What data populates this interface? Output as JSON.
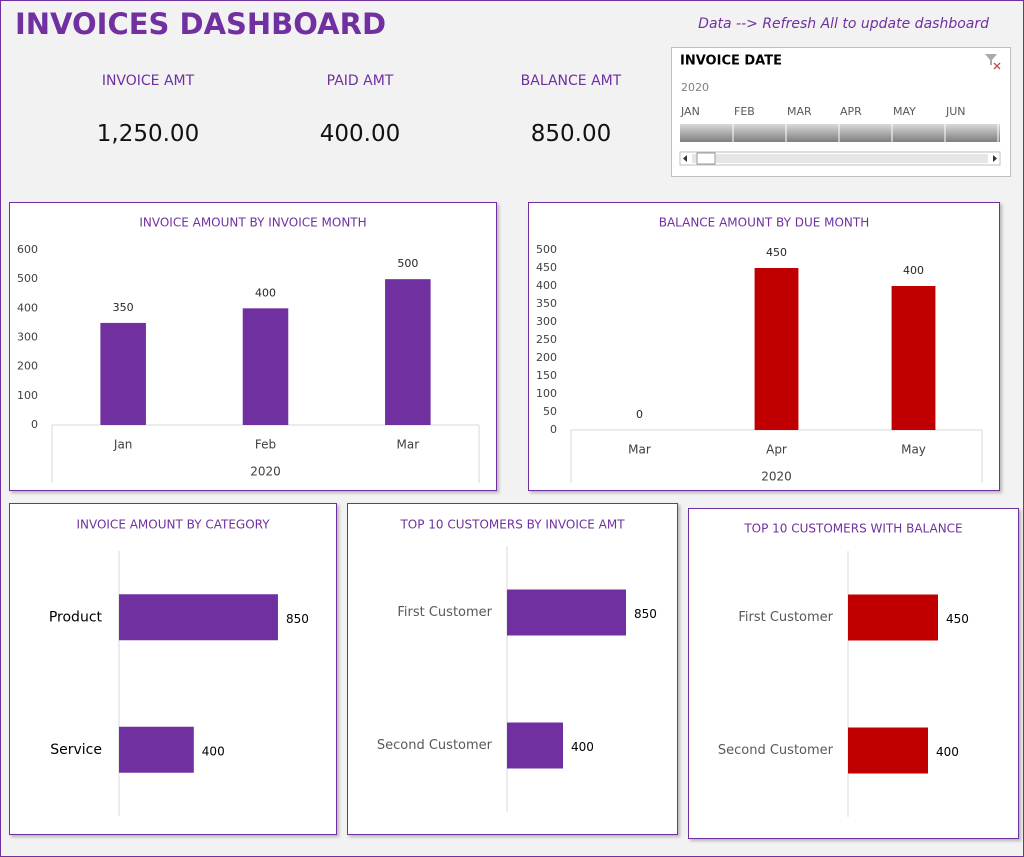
{
  "header": {
    "title": "INVOICES DASHBOARD",
    "note": "Data --> Refresh All to update dashboard"
  },
  "kpis": [
    {
      "label": "INVOICE AMT",
      "value": "1,250.00"
    },
    {
      "label": "PAID AMT",
      "value": "400.00"
    },
    {
      "label": "BALANCE AMT",
      "value": "850.00"
    }
  ],
  "slicer": {
    "title": "INVOICE DATE",
    "year": "2020",
    "months": [
      "JAN",
      "FEB",
      "MAR",
      "APR",
      "MAY",
      "JUN"
    ]
  },
  "chart_data": [
    {
      "type": "bar",
      "title": "INVOICE AMOUNT BY INVOICE MONTH",
      "categories": [
        "Jan",
        "Feb",
        "Mar"
      ],
      "xlabel": "2020",
      "values": [
        350,
        400,
        500
      ],
      "color": "#7030a0",
      "ylim": [
        0,
        600
      ],
      "yticks": [
        0,
        100,
        200,
        300,
        400,
        500,
        600
      ],
      "grid": false,
      "data_labels": true
    },
    {
      "type": "bar",
      "title": "BALANCE AMOUNT BY DUE MONTH",
      "categories": [
        "Mar",
        "Apr",
        "May"
      ],
      "xlabel": "2020",
      "values": [
        0,
        450,
        400
      ],
      "color": "#c00000",
      "ylim": [
        0,
        500
      ],
      "yticks": [
        0,
        50,
        100,
        150,
        200,
        250,
        300,
        350,
        400,
        450,
        500
      ],
      "grid": false,
      "data_labels": true
    },
    {
      "type": "hbar",
      "title": "INVOICE AMOUNT BY CATEGORY",
      "categories": [
        "Product",
        "Service"
      ],
      "values": [
        850,
        400
      ],
      "color": "#7030a0",
      "xlim": [
        0,
        1000
      ],
      "data_labels": true
    },
    {
      "type": "hbar",
      "title": "TOP 10 CUSTOMERS BY INVOICE AMT",
      "categories": [
        "First Customer",
        "Second Customer"
      ],
      "values": [
        850,
        400
      ],
      "color": "#7030a0",
      "xlim": [
        0,
        1000
      ],
      "data_labels": true
    },
    {
      "type": "hbar",
      "title": "TOP 10 CUSTOMERS WITH BALANCE",
      "categories": [
        "First Customer",
        "Second Customer"
      ],
      "values": [
        450,
        400
      ],
      "color": "#c00000",
      "xlim": [
        0,
        700
      ],
      "data_labels": true
    }
  ]
}
